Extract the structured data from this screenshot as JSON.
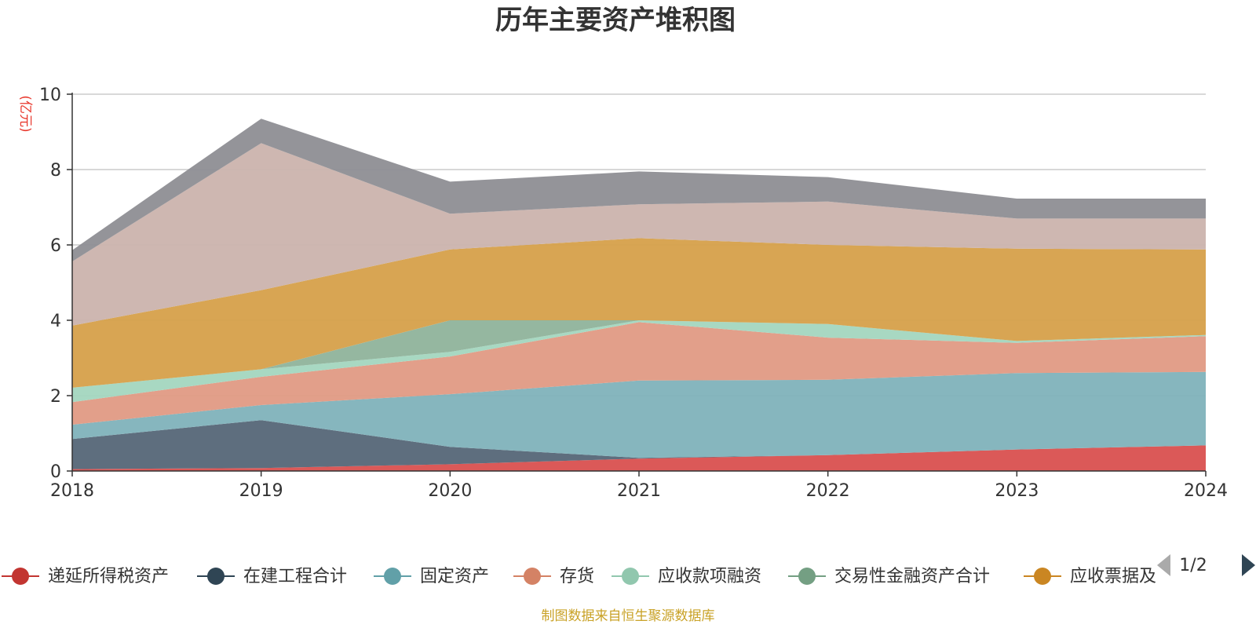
{
  "chart_data": {
    "type": "area",
    "stacked": true,
    "title": "历年主要资产堆积图",
    "unit_label": "(亿元)",
    "x": [
      "2018",
      "2019",
      "2020",
      "2021",
      "2022",
      "2023",
      "2024"
    ],
    "ylim": [
      0,
      10
    ],
    "yticks": [
      "0",
      "2",
      "4",
      "6",
      "8",
      "10"
    ],
    "grid": true,
    "series": [
      {
        "name": "递延所得税资产",
        "color": "#d9504f",
        "legend_color": "#c23531",
        "values": [
          0.05,
          0.08,
          0.18,
          0.33,
          0.42,
          0.57,
          0.68
        ]
      },
      {
        "name": "在建工程合计",
        "color": "#556677",
        "legend_color": "#2f4554",
        "values": [
          0.8,
          1.27,
          0.46,
          0.02,
          0.0,
          0.0,
          0.0
        ]
      },
      {
        "name": "固定资产",
        "color": "#7fb2ba",
        "legend_color": "#61a0a8",
        "values": [
          0.38,
          0.4,
          1.4,
          2.05,
          2.0,
          2.03,
          1.95
        ]
      },
      {
        "name": "存货",
        "color": "#e09a84",
        "legend_color": "#d48265",
        "values": [
          0.6,
          0.75,
          1.0,
          1.55,
          1.12,
          0.8,
          0.95
        ]
      },
      {
        "name": "应收款项融资",
        "color": "#a3d6bf",
        "legend_color": "#91c7ae",
        "values": [
          0.38,
          0.2,
          0.12,
          0.05,
          0.36,
          0.05,
          0.03
        ]
      },
      {
        "name": "交易性金融资产合计",
        "color": "#8fb39b",
        "legend_color": "#749f83",
        "values": [
          0.0,
          0.0,
          0.84,
          0.0,
          0.0,
          0.0,
          0.0
        ]
      },
      {
        "name": "应收票据及",
        "color": "#d6a04a",
        "legend_color": "#ca8622",
        "values": [
          1.65,
          2.1,
          1.88,
          2.18,
          2.1,
          2.45,
          2.27
        ]
      },
      {
        "name": "",
        "color": "#cbb3ad",
        "legend_color": "#bda29a",
        "values": [
          1.7,
          3.9,
          0.95,
          0.9,
          1.15,
          0.8,
          0.82
        ]
      },
      {
        "name": "",
        "color": "#8e8e93",
        "legend_color": "#6e7074",
        "values": [
          0.3,
          0.65,
          0.85,
          0.87,
          0.65,
          0.53,
          0.53
        ]
      }
    ]
  },
  "legend": {
    "visible_count": 7,
    "page_indicator": "1/2"
  },
  "footer": {
    "source_text": "制图数据来自恒生聚源数据库"
  }
}
